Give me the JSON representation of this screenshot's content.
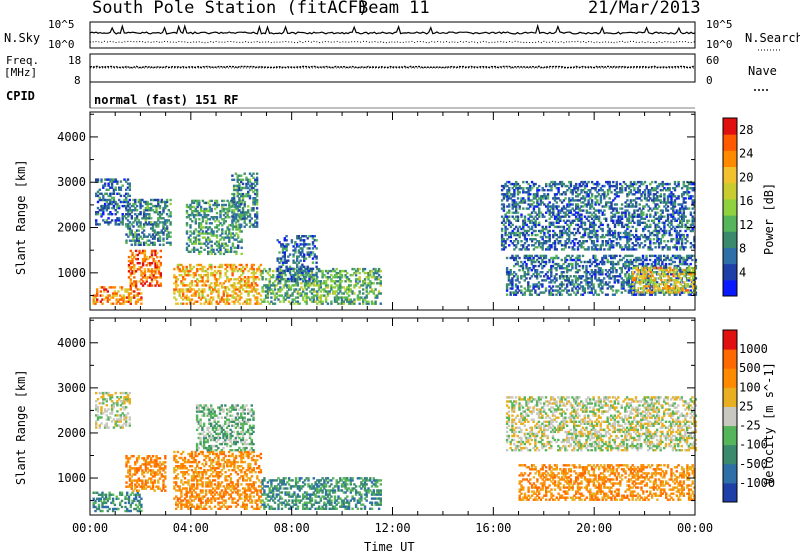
{
  "header": {
    "station": "South Pole Station (fitACF)",
    "beam": "Beam 11",
    "date": "21/Mar/2013"
  },
  "panels": {
    "nsky": {
      "label": "N.Sky",
      "top_tick": "10^5",
      "bottom_tick": "10^0",
      "right_label": "N.Search"
    },
    "freq": {
      "label_line1": "Freq.",
      "label_line2": "[MHz]",
      "top_tick": "18",
      "bottom_tick": "8",
      "right_top_tick": "60",
      "right_bottom_tick": "0",
      "right_label": "Nave"
    },
    "cpid": {
      "label": "CPID",
      "value": "normal (fast) 151 RF"
    }
  },
  "chart_data": [
    {
      "type": "heatmap",
      "name": "power",
      "ylabel": "Slant Range [km]",
      "xlabel": "Time UT",
      "x_ticks": [
        "00:00",
        "04:00",
        "08:00",
        "12:00",
        "16:00",
        "20:00",
        "00:00"
      ],
      "x_range_hours": [
        0,
        24
      ],
      "y_ticks": [
        1000,
        2000,
        3000,
        4000
      ],
      "ylim": [
        180,
        4550
      ],
      "colorbar": {
        "label": "Power [dB]",
        "ticks": [
          "4",
          "8",
          "12",
          "16",
          "20",
          "24",
          "28"
        ],
        "range": [
          0,
          30
        ],
        "colors": [
          "#0a1aff",
          "#1f3fa8",
          "#2d6fa6",
          "#3b8a6e",
          "#56b55a",
          "#8fd13f",
          "#c9cc2e",
          "#f2c12e",
          "#ff8a00",
          "#ff5a00",
          "#e01010"
        ]
      },
      "regions": [
        {
          "t0": 0.2,
          "t1": 1.6,
          "r0": 2050,
          "r1": 3050,
          "level": 6
        },
        {
          "t0": 0.1,
          "t1": 2.0,
          "r0": 300,
          "r1": 700,
          "level": 24
        },
        {
          "t0": 1.5,
          "t1": 2.8,
          "r0": 700,
          "r1": 1500,
          "level": 26
        },
        {
          "t0": 1.4,
          "t1": 3.2,
          "r0": 1600,
          "r1": 2600,
          "level": 8
        },
        {
          "t0": 3.3,
          "t1": 6.8,
          "r0": 300,
          "r1": 1200,
          "level": 22
        },
        {
          "t0": 3.8,
          "t1": 6.0,
          "r0": 1400,
          "r1": 2600,
          "level": 10
        },
        {
          "t0": 5.6,
          "t1": 6.6,
          "r0": 2000,
          "r1": 3200,
          "level": 8
        },
        {
          "t0": 6.8,
          "t1": 11.5,
          "r0": 300,
          "r1": 1100,
          "level": 12
        },
        {
          "t0": 7.4,
          "t1": 9.0,
          "r0": 800,
          "r1": 1800,
          "level": 6
        },
        {
          "t0": 16.3,
          "t1": 24.0,
          "r0": 1500,
          "r1": 3000,
          "level": 6
        },
        {
          "t0": 16.5,
          "t1": 24.0,
          "r0": 500,
          "r1": 1400,
          "level": 6
        },
        {
          "t0": 21.5,
          "t1": 24.0,
          "r0": 550,
          "r1": 1100,
          "level": 20
        }
      ]
    },
    {
      "type": "heatmap",
      "name": "velocity",
      "ylabel": "Slant Range [km]",
      "xlabel": "Time UT",
      "x_ticks": [
        "00:00",
        "04:00",
        "08:00",
        "12:00",
        "16:00",
        "20:00",
        "00:00"
      ],
      "x_range_hours": [
        0,
        24
      ],
      "y_ticks": [
        1000,
        2000,
        3000,
        4000
      ],
      "ylim": [
        180,
        4550
      ],
      "colorbar": {
        "label": "Velocity [m s^-1]",
        "ticks": [
          "1000",
          "500",
          "100",
          "25",
          "-25",
          "-100",
          "-500",
          "-1000"
        ],
        "colors": [
          "#1f3fa8",
          "#2d6fa6",
          "#3b8a6e",
          "#56b55a",
          "#c8c8c0",
          "#e8b020",
          "#ff8a00",
          "#ff6a00",
          "#e01010"
        ]
      },
      "regions": [
        {
          "t0": 0.2,
          "t1": 1.6,
          "r0": 2100,
          "r1": 2900,
          "level": 4
        },
        {
          "t0": 0.1,
          "t1": 2.0,
          "r0": 250,
          "r1": 700,
          "level": 2
        },
        {
          "t0": 1.4,
          "t1": 3.0,
          "r0": 700,
          "r1": 1500,
          "level": 6
        },
        {
          "t0": 3.3,
          "t1": 6.8,
          "r0": 300,
          "r1": 1600,
          "level": 6
        },
        {
          "t0": 4.2,
          "t1": 6.5,
          "r0": 1600,
          "r1": 2600,
          "level": 3
        },
        {
          "t0": 6.8,
          "t1": 11.5,
          "r0": 300,
          "r1": 1000,
          "level": 2
        },
        {
          "t0": 16.5,
          "t1": 24.0,
          "r0": 1600,
          "r1": 2800,
          "level": 4
        },
        {
          "t0": 17.0,
          "t1": 24.0,
          "r0": 500,
          "r1": 1300,
          "level": 6
        }
      ]
    }
  ]
}
